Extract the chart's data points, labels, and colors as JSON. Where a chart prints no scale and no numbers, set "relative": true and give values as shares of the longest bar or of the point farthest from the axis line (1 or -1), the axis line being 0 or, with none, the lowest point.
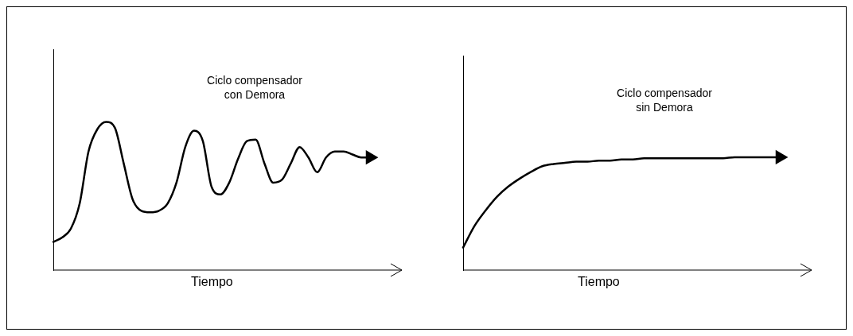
{
  "chart_data": [
    {
      "type": "line",
      "relative": true,
      "xlabel": "Tiempo",
      "annotations": [
        "Ciclo compensador con Demora"
      ],
      "categories": [
        null,
        null,
        null,
        null,
        null,
        null,
        null,
        null,
        null,
        null,
        null,
        null,
        null,
        null,
        null,
        null,
        null,
        null,
        null,
        null,
        null,
        null,
        null,
        null,
        null,
        null,
        null,
        null,
        null,
        null,
        null,
        null,
        null,
        null,
        null,
        null,
        null
      ],
      "series": [
        {
          "color": "#000000",
          "values": [
            0.19,
            0.22,
            0.28,
            0.45,
            0.8,
            0.95,
            1,
            0.96,
            0.72,
            0.48,
            0.4,
            0.39,
            0.4,
            0.45,
            0.59,
            0.83,
            0.94,
            0.87,
            0.56,
            0.51,
            0.59,
            0.75,
            0.87,
            0.88,
            0.72,
            0.59,
            0.61,
            0.72,
            0.83,
            0.76,
            0.66,
            0.76,
            0.8,
            0.8,
            0.78,
            0.76,
            0.76
          ]
        }
      ]
    },
    {
      "type": "line",
      "relative": true,
      "xlabel": "Tiempo",
      "annotations": [
        "Ciclo compensador sin Demora"
      ],
      "categories": [
        null,
        null,
        null,
        null,
        null,
        null,
        null,
        null,
        null,
        null,
        null,
        null,
        null,
        null,
        null,
        null,
        null,
        null,
        null,
        null,
        null,
        null,
        null,
        null,
        null,
        null,
        null,
        null,
        null
      ],
      "series": [
        {
          "color": "#000000",
          "values": [
            0.2,
            0.39,
            0.53,
            0.65,
            0.74,
            0.81,
            0.87,
            0.92,
            0.94,
            0.95,
            0.96,
            0.96,
            0.97,
            0.97,
            0.98,
            0.98,
            0.99,
            0.99,
            0.99,
            0.99,
            0.99,
            0.99,
            0.99,
            0.99,
            1,
            1,
            1,
            1,
            1
          ]
        }
      ]
    }
  ]
}
